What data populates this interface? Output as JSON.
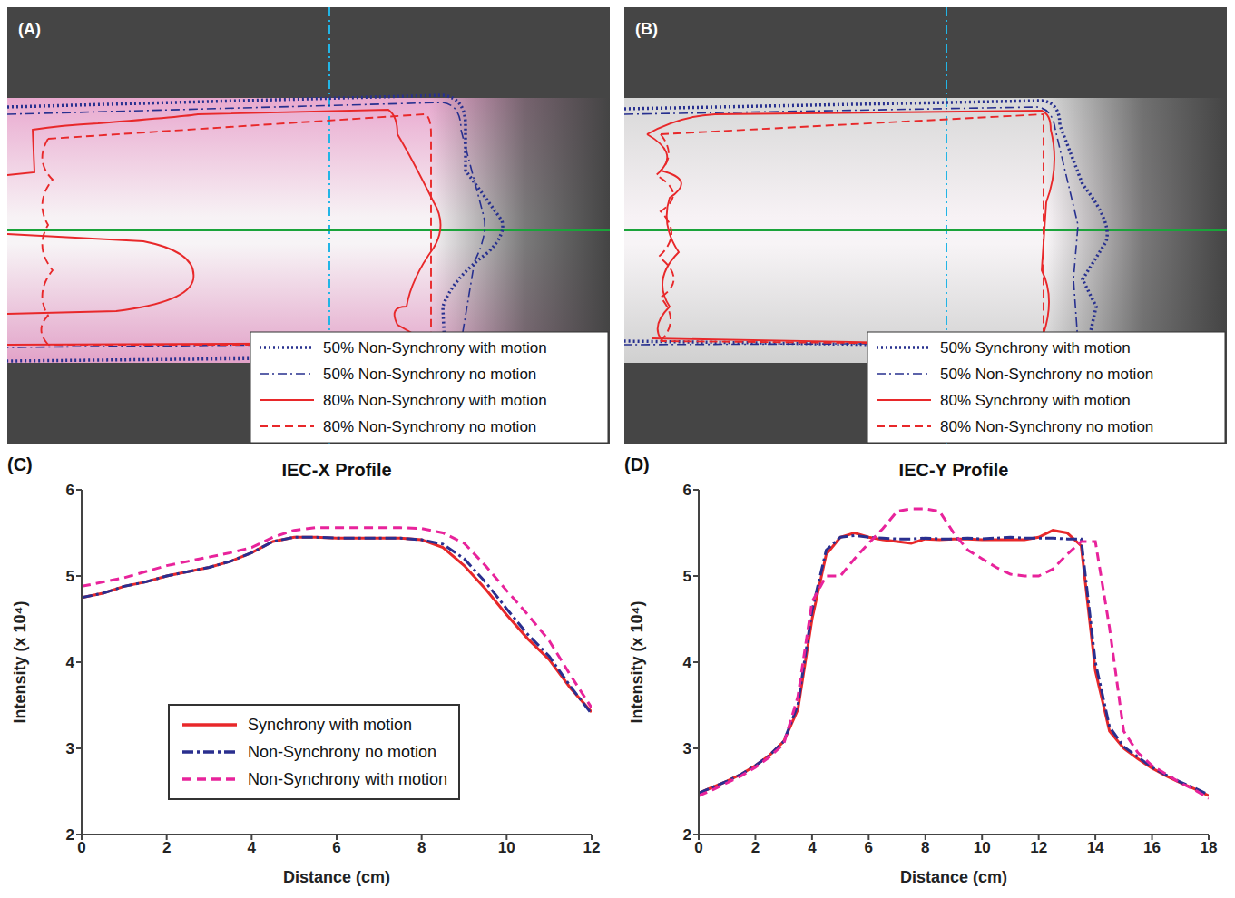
{
  "images": [
    {
      "label": "(A)",
      "legend": [
        {
          "name": "50% Non-Synchrony with motion",
          "color": "#27308f",
          "line_style": "dotted"
        },
        {
          "name": "50% Non-Synchrony no motion",
          "color": "#27308f",
          "line_style": "dashdot"
        },
        {
          "name": "80% Non-Synchrony with motion",
          "color": "#e8282a",
          "line_style": "solid"
        },
        {
          "name": "80% Non-Synchrony no motion",
          "color": "#e8282a",
          "line_style": "dashed"
        }
      ]
    },
    {
      "label": "(B)",
      "legend": [
        {
          "name": "50% Synchrony with motion",
          "color": "#27308f",
          "line_style": "dotted"
        },
        {
          "name": "50% Non-Synchrony no motion",
          "color": "#27308f",
          "line_style": "dashdot"
        },
        {
          "name": "80% Synchrony with motion",
          "color": "#e8282a",
          "line_style": "solid"
        },
        {
          "name": "80% Non-Synchrony no motion",
          "color": "#e8282a",
          "line_style": "dashed"
        }
      ]
    }
  ],
  "chart_data": [
    {
      "type": "line",
      "label": "(C)",
      "title": "IEC-X Profile",
      "x_label": "Distance (cm)",
      "y_label": "Intensity (x 10⁴)",
      "xlim": [
        0,
        12
      ],
      "xticks": [
        0,
        2,
        4,
        6,
        8,
        10,
        12
      ],
      "ylim": [
        2,
        6
      ],
      "yticks": [
        2,
        3,
        4,
        5,
        6
      ],
      "grid": false,
      "legend": "lower left",
      "x": [
        0,
        0.5,
        1,
        1.5,
        2,
        2.5,
        3,
        3.5,
        4,
        4.5,
        5,
        5.5,
        6,
        6.5,
        7,
        7.5,
        8,
        8.5,
        9,
        9.5,
        10,
        10.5,
        11,
        11.5,
        12
      ],
      "series": [
        {
          "name": "Synchrony with motion",
          "color": "#e8282a",
          "line_style": "solid",
          "values": [
            4.75,
            4.8,
            4.88,
            4.93,
            5.0,
            5.05,
            5.1,
            5.17,
            5.27,
            5.4,
            5.45,
            5.45,
            5.44,
            5.44,
            5.44,
            5.44,
            5.42,
            5.33,
            5.12,
            4.85,
            4.55,
            4.27,
            4.03,
            3.7,
            3.42
          ]
        },
        {
          "name": "Non-Synchrony no motion",
          "color": "#2a2f8f",
          "line_style": "dashdot",
          "values": [
            4.75,
            4.8,
            4.88,
            4.93,
            5.0,
            5.05,
            5.1,
            5.17,
            5.27,
            5.4,
            5.45,
            5.45,
            5.44,
            5.44,
            5.44,
            5.44,
            5.42,
            5.37,
            5.2,
            4.93,
            4.62,
            4.32,
            4.07,
            3.72,
            3.4
          ]
        },
        {
          "name": "Non-Synchrony with motion",
          "color": "#e8239b",
          "line_style": "dashed",
          "values": [
            4.88,
            4.93,
            4.98,
            5.05,
            5.12,
            5.17,
            5.22,
            5.27,
            5.33,
            5.45,
            5.53,
            5.56,
            5.56,
            5.56,
            5.56,
            5.56,
            5.55,
            5.5,
            5.38,
            5.12,
            4.83,
            4.55,
            4.25,
            3.85,
            3.47
          ]
        }
      ]
    },
    {
      "type": "line",
      "label": "(D)",
      "title": "IEC-Y Profile",
      "x_label": "Distance (cm)",
      "y_label": "Intensity (x 10⁴)",
      "xlim": [
        0,
        18
      ],
      "xticks": [
        0,
        2,
        4,
        6,
        8,
        10,
        12,
        14,
        16,
        18
      ],
      "ylim": [
        2,
        6
      ],
      "yticks": [
        2,
        3,
        4,
        5,
        6
      ],
      "grid": false,
      "x": [
        0,
        0.5,
        1,
        1.5,
        2,
        2.5,
        3,
        3.5,
        4,
        4.5,
        5,
        5.5,
        6,
        6.5,
        7,
        7.5,
        8,
        8.5,
        9,
        9.5,
        10,
        10.5,
        11,
        11.5,
        12,
        12.5,
        13,
        13.5,
        14,
        14.5,
        15,
        15.5,
        16,
        16.5,
        17,
        17.5,
        18
      ],
      "series": [
        {
          "color": "#e8282a",
          "line_style": "solid",
          "values": [
            2.48,
            2.55,
            2.62,
            2.7,
            2.8,
            2.92,
            3.08,
            3.45,
            4.5,
            5.25,
            5.45,
            5.5,
            5.45,
            5.42,
            5.4,
            5.38,
            5.43,
            5.42,
            5.43,
            5.43,
            5.42,
            5.42,
            5.42,
            5.42,
            5.45,
            5.53,
            5.5,
            5.35,
            3.9,
            3.2,
            3.0,
            2.88,
            2.77,
            2.68,
            2.6,
            2.53,
            2.45
          ]
        },
        {
          "color": "#2a2f8f",
          "line_style": "dashdot",
          "values": [
            2.48,
            2.55,
            2.62,
            2.7,
            2.8,
            2.92,
            3.08,
            3.5,
            4.6,
            5.3,
            5.45,
            5.47,
            5.45,
            5.44,
            5.43,
            5.43,
            5.44,
            5.43,
            5.43,
            5.44,
            5.43,
            5.44,
            5.45,
            5.44,
            5.44,
            5.44,
            5.43,
            5.43,
            4.0,
            3.25,
            3.02,
            2.9,
            2.78,
            2.69,
            2.61,
            2.54,
            2.46
          ]
        },
        {
          "color": "#e8239b",
          "line_style": "dashed",
          "values": [
            2.45,
            2.52,
            2.6,
            2.68,
            2.78,
            2.9,
            3.05,
            3.6,
            4.7,
            5.0,
            5.0,
            5.2,
            5.38,
            5.55,
            5.75,
            5.78,
            5.78,
            5.75,
            5.5,
            5.3,
            5.2,
            5.1,
            5.02,
            5.0,
            5.0,
            5.08,
            5.25,
            5.4,
            5.4,
            4.4,
            3.2,
            2.95,
            2.8,
            2.7,
            2.6,
            2.52,
            2.42
          ]
        }
      ]
    }
  ]
}
